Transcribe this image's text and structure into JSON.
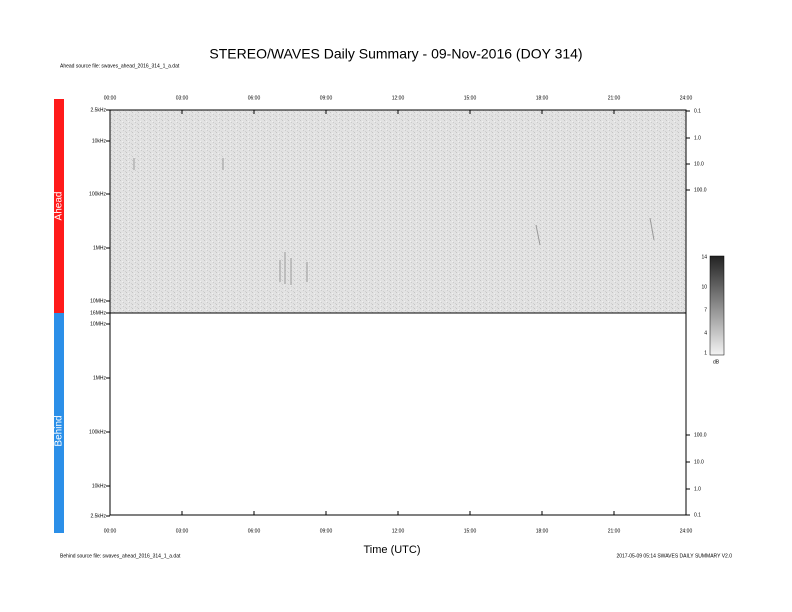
{
  "header": {
    "title": "STEREO/WAVES Daily Summary - 09-Nov-2016 (DOY 314)",
    "ahead_source": "Ahead source file: swaves_ahead_2016_314_1_a.dat",
    "behind_source": "Behind source file: swaves_ahead_2016_314_1_a.dat",
    "footer_right": "2017-05-09 05:14 SWAVES DAILY SUMMARY V2.0"
  },
  "panels": [
    {
      "label": "Ahead",
      "freq_ticks": [
        "2.5kHz",
        "10kHz",
        "100kHz",
        "1MHz",
        "10MHz",
        "16MHz"
      ],
      "right_ticks": [
        "0.1",
        "1.0",
        "10.0",
        "100.0"
      ]
    },
    {
      "label": "Behind",
      "freq_ticks": [
        "10MHz",
        "1MHz",
        "100kHz",
        "10kHz",
        "2.5kHz"
      ],
      "right_ticks": [
        "100.0",
        "10.0",
        "1.0",
        "0.1"
      ]
    }
  ],
  "time_ticks": [
    "00:00",
    "03:00",
    "06:00",
    "09:00",
    "12:00",
    "15:00",
    "18:00",
    "21:00",
    "24:00"
  ],
  "x_label": "Time (UTC)",
  "colorbar": {
    "ticks": [
      "14",
      "10",
      "7",
      "4",
      "1"
    ],
    "unit": "dB"
  }
}
